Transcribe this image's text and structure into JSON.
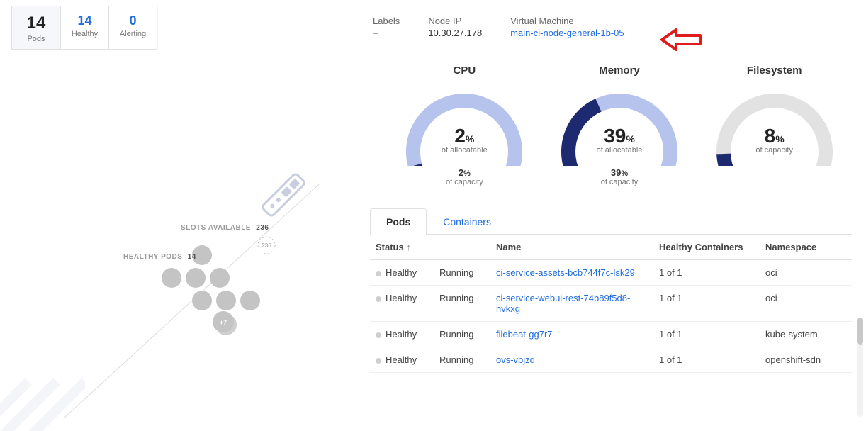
{
  "pods_summary": {
    "total": {
      "value": "14",
      "label": "Pods"
    },
    "healthy": {
      "value": "14",
      "label": "Healthy"
    },
    "alerting": {
      "value": "0",
      "label": "Alerting"
    }
  },
  "swarm": {
    "slots_label": "SLOTS AVAILABLE",
    "slots_value": "236",
    "healthy_label": "HEALTHY PODS",
    "healthy_value": "14",
    "slot_badge": "236",
    "stack_badge": "+7",
    "dot_color": "#c4c4c4",
    "line_color": "#dcdcdc",
    "accent_color": "#bfc7d6"
  },
  "info": {
    "labels": {
      "key": "Labels",
      "value": "–"
    },
    "nodeip": {
      "key": "Node IP",
      "value": "10.30.27.178"
    },
    "vm": {
      "key": "Virtual Machine",
      "value": "main-ci-node-general-1b-05"
    }
  },
  "gauges": {
    "cpu": {
      "title": "CPU",
      "percent": 2,
      "percent_text": "2",
      "sub": "of allocatable",
      "capacity_text": "2",
      "capacity_sub": "of capacity",
      "fg": "#1e2a70",
      "bg": "#b6c3ec"
    },
    "memory": {
      "title": "Memory",
      "percent": 39,
      "percent_text": "39",
      "sub": "of allocatable",
      "capacity_text": "39",
      "capacity_sub": "of capacity",
      "fg": "#1e2a70",
      "bg": "#b6c3ec"
    },
    "filesystem": {
      "title": "Filesystem",
      "percent": 8,
      "percent_text": "8",
      "sub": "of capacity",
      "capacity_text": "",
      "capacity_sub": "",
      "fg": "#1e2a70",
      "bg": "#e2e2e2"
    }
  },
  "tabs": {
    "pods": "Pods",
    "containers": "Containers",
    "active": "pods"
  },
  "table": {
    "columns": {
      "status": "Status",
      "state": "",
      "name": "Name",
      "healthy": "Healthy Containers",
      "namespace": "Namespace"
    },
    "rows": [
      {
        "status": "Healthy",
        "state": "Running",
        "name": "ci-service-assets-bcb744f7c-lsk29",
        "healthy": "1 of 1",
        "namespace": "oci"
      },
      {
        "status": "Healthy",
        "state": "Running",
        "name": "ci-service-webui-rest-74b89f5d8-nvkxg",
        "healthy": "1 of 1",
        "namespace": "oci"
      },
      {
        "status": "Healthy",
        "state": "Running",
        "name": "filebeat-gg7r7",
        "healthy": "1 of 1",
        "namespace": "kube-system"
      },
      {
        "status": "Healthy",
        "state": "Running",
        "name": "ovs-vbjzd",
        "healthy": "1 of 1",
        "namespace": "openshift-sdn"
      }
    ]
  },
  "annotation_color": "#e11b1b"
}
